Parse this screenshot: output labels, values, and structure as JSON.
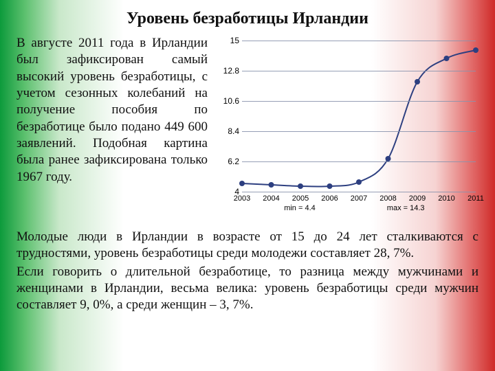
{
  "title": "Уровень безработицы Ирландии",
  "left_para": "В августе 2011 года в Ирландии был зафиксирован самый высокий уровень безработицы, с учетом сезонных колебаний на получение пособия по безработице было подано 449 600 заявлений. Подобная картина была ранее зафиксирована только 1967 году.",
  "lower_para_1": " Молодые люди в Ирландии в возрасте от 15 до 24 лет сталкиваются с трудностями, уровень безработицы среди молодежи составляет 28, 7%.",
  "lower_para_2": " Если говорить о длительной безработице, то разница между мужчинами и женщинами в Ирландии, весьма велика: уровень безработицы среди мужчин составляет 9, 0%, а среди женщин – 3, 7%.",
  "chart": {
    "type": "line",
    "ylim": [
      4,
      15
    ],
    "yticks": [
      4,
      6.2,
      8.4,
      10.6,
      12.8,
      15
    ],
    "ytick_labels": [
      "4",
      "6.2",
      "8.4",
      "10.6",
      "12.8",
      "15"
    ],
    "xlabels": [
      "2003",
      "2004",
      "2005",
      "2006",
      "2007",
      "2008",
      "2009",
      "2010",
      "2011"
    ],
    "values": [
      4.6,
      4.5,
      4.4,
      4.4,
      4.7,
      6.4,
      12.0,
      13.7,
      14.3
    ],
    "min_label": "min = 4.4",
    "max_label": "max = 14.3",
    "line_color": "#2d3f80",
    "grid_color": "#8a93ad",
    "tick_font_size": 12,
    "xlabel_font_size": 11,
    "marker_radius": 4
  }
}
